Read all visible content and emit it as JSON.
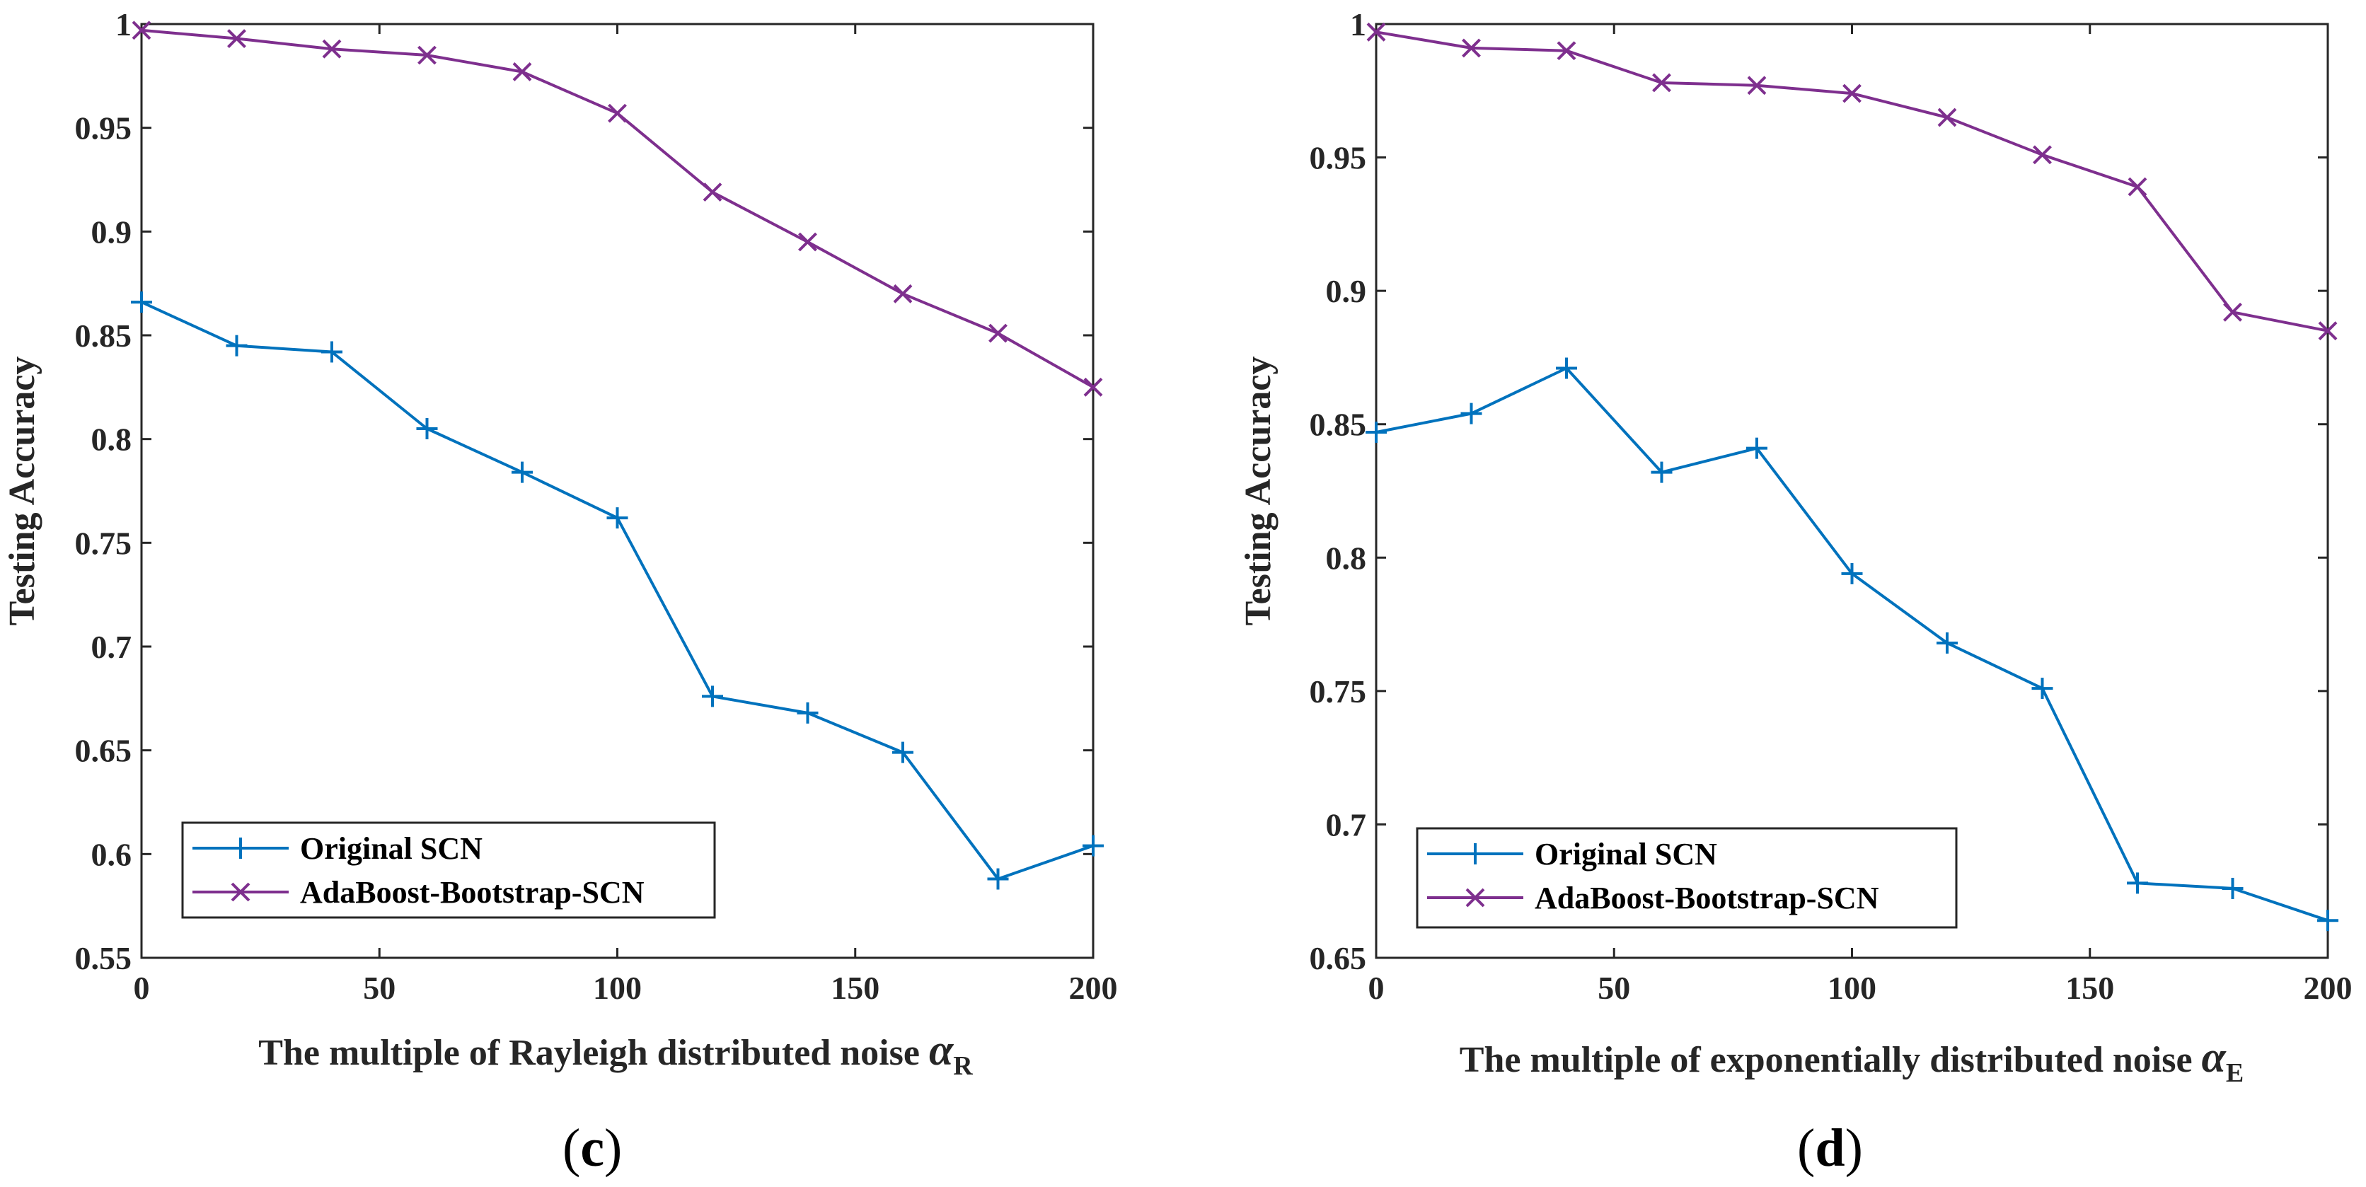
{
  "chart_data": [
    {
      "type": "line",
      "panel_label": "c",
      "title": "",
      "xlabel": "The multiple of Rayleigh distributed noise",
      "xlabel_symbol": "α",
      "xlabel_subscript": "R",
      "ylabel": "Testing Accuracy",
      "xlim": [
        0,
        200
      ],
      "ylim": [
        0.55,
        1
      ],
      "xticks": [
        0,
        50,
        100,
        150,
        200
      ],
      "yticks": [
        0.55,
        0.6,
        0.65,
        0.7,
        0.75,
        0.8,
        0.85,
        0.9,
        0.95,
        1
      ],
      "ytick_labels": [
        "0.55",
        "0.6",
        "0.65",
        "0.7",
        "0.75",
        "0.8",
        "0.85",
        "0.9",
        "0.95",
        "1"
      ],
      "grid": false,
      "legend_position": "bottom-left",
      "x": [
        0,
        20,
        40,
        60,
        80,
        100,
        120,
        140,
        160,
        180,
        200
      ],
      "series": [
        {
          "name": "Original SCN",
          "color": "#0072BD",
          "marker": "plus",
          "values": [
            0.866,
            0.845,
            0.842,
            0.805,
            0.784,
            0.762,
            0.676,
            0.668,
            0.649,
            0.588,
            0.604
          ]
        },
        {
          "name": "AdaBoost-Bootstrap-SCN",
          "color": "#7E2F8E",
          "marker": "cross",
          "values": [
            0.997,
            0.993,
            0.988,
            0.985,
            0.977,
            0.957,
            0.919,
            0.895,
            0.87,
            0.851,
            0.825
          ]
        }
      ]
    },
    {
      "type": "line",
      "panel_label": "d",
      "title": "",
      "xlabel": "The multiple of exponentially distributed noise",
      "xlabel_symbol": "α",
      "xlabel_subscript": "E",
      "ylabel": "Testing Accuracy",
      "xlim": [
        0,
        200
      ],
      "ylim": [
        0.65,
        1
      ],
      "xticks": [
        0,
        50,
        100,
        150,
        200
      ],
      "yticks": [
        0.65,
        0.7,
        0.75,
        0.8,
        0.85,
        0.9,
        0.95,
        1
      ],
      "ytick_labels": [
        "0.65",
        "0.7",
        "0.75",
        "0.8",
        "0.85",
        "0.9",
        "0.95",
        "1"
      ],
      "grid": false,
      "legend_position": "bottom-left",
      "x": [
        0,
        20,
        40,
        60,
        80,
        100,
        120,
        140,
        160,
        180,
        200
      ],
      "series": [
        {
          "name": "Original SCN",
          "color": "#0072BD",
          "marker": "plus",
          "values": [
            0.847,
            0.854,
            0.871,
            0.832,
            0.841,
            0.794,
            0.768,
            0.751,
            0.678,
            0.676,
            0.664
          ]
        },
        {
          "name": "AdaBoost-Bootstrap-SCN",
          "color": "#7E2F8E",
          "marker": "cross",
          "values": [
            0.997,
            0.991,
            0.99,
            0.978,
            0.977,
            0.974,
            0.965,
            0.951,
            0.939,
            0.892,
            0.885
          ]
        }
      ]
    }
  ]
}
